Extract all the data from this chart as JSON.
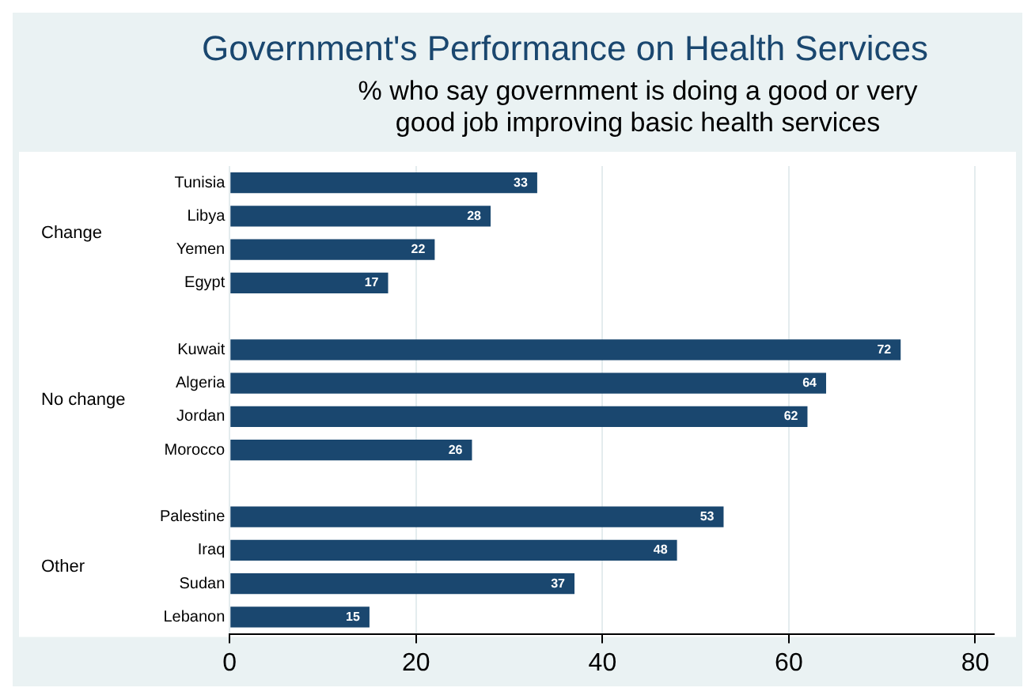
{
  "chart_data": {
    "type": "bar",
    "orientation": "horizontal",
    "title": "Government's Performance on Health Services",
    "subtitle": "% who say government is doing a good or very good job improving basic health services",
    "categories": [
      "Tunisia",
      "Libya",
      "Yemen",
      "Egypt",
      null,
      "Kuwait",
      "Algeria",
      "Jordan",
      "Morocco",
      null,
      "Palestine",
      "Iraq",
      "Sudan",
      "Lebanon"
    ],
    "values": [
      33,
      28,
      22,
      17,
      null,
      72,
      64,
      62,
      26,
      null,
      53,
      48,
      37,
      15
    ],
    "color": "#1a476f",
    "xlim": [
      0,
      82
    ],
    "xticks": [
      0,
      20,
      40,
      60,
      80
    ],
    "grid": "x",
    "data_labels": true,
    "annotations": [
      "Change",
      "No change",
      "Other"
    ]
  }
}
